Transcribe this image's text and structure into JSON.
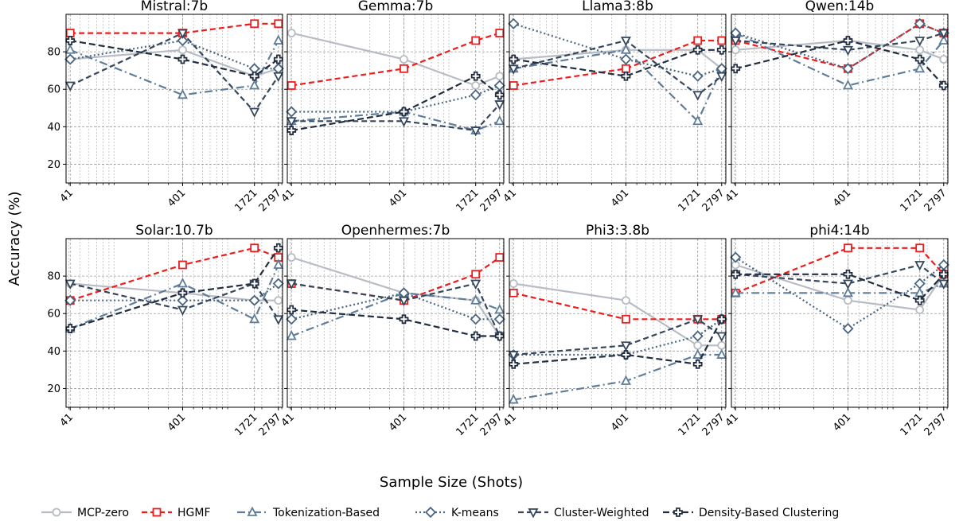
{
  "figure": {
    "xlabel": "Sample Size (Shots)",
    "ylabel": "Accuracy (%)"
  },
  "chart_data": {
    "type": "line",
    "x_scale": "log",
    "x": [
      41,
      401,
      1721,
      2797
    ],
    "x_tick_labels": [
      "41",
      "401",
      "1721",
      "2797"
    ],
    "y_ticks": [
      20,
      40,
      60,
      80
    ],
    "ylim": [
      10,
      100
    ],
    "grid": true,
    "legend_position": "bottom",
    "series_styles": [
      {
        "name": "MCP-zero",
        "color": "#b8bcc4",
        "dash": "",
        "marker": "circle",
        "width": 2.2
      },
      {
        "name": "HGMF",
        "color": "#ee1c1c",
        "dash": "7,4",
        "marker": "square",
        "width": 2.2
      },
      {
        "name": "Tokenization-Based",
        "color": "#5f7d99",
        "dash": "10,4,2,4",
        "marker": "triangle-up",
        "width": 2.2
      },
      {
        "name": "K-means",
        "color": "#4a6580",
        "dash": "2,3",
        "marker": "diamond",
        "width": 2.2
      },
      {
        "name": "Cluster-Weighted",
        "color": "#36475c",
        "dash": "7,4",
        "marker": "triangle-down",
        "width": 2.2
      },
      {
        "name": "Density-Based Clustering",
        "color": "#222e40",
        "dash": "8,4",
        "marker": "plus",
        "width": 2.2
      }
    ],
    "panels": [
      {
        "title": "Mistral:7b",
        "series": [
          {
            "name": "MCP-zero",
            "values": [
              76,
              81,
              67,
              71
            ]
          },
          {
            "name": "HGMF",
            "values": [
              90,
              90,
              95,
              95
            ]
          },
          {
            "name": "Tokenization-Based",
            "values": [
              81,
              57,
              62,
              86
            ]
          },
          {
            "name": "K-means",
            "values": [
              76,
              86,
              71,
              71
            ]
          },
          {
            "name": "Cluster-Weighted",
            "values": [
              62,
              90,
              48,
              67
            ]
          },
          {
            "name": "Density-Based Clustering",
            "values": [
              86,
              76,
              67,
              76
            ]
          }
        ]
      },
      {
        "title": "Gemma:7b",
        "series": [
          {
            "name": "MCP-zero",
            "values": [
              90,
              76,
              62,
              67
            ]
          },
          {
            "name": "HGMF",
            "values": [
              62,
              71,
              86,
              90
            ]
          },
          {
            "name": "Tokenization-Based",
            "values": [
              43,
              48,
              38,
              43
            ]
          },
          {
            "name": "K-means",
            "values": [
              48,
              48,
              57,
              62
            ]
          },
          {
            "name": "Cluster-Weighted",
            "values": [
              43,
              43,
              38,
              52
            ]
          },
          {
            "name": "Density-Based Clustering",
            "values": [
              38,
              48,
              67,
              57
            ]
          }
        ]
      },
      {
        "title": "Llama3:8b",
        "series": [
          {
            "name": "MCP-zero",
            "values": [
              76,
              81,
              81,
              71
            ]
          },
          {
            "name": "HGMF",
            "values": [
              62,
              71,
              86,
              86
            ]
          },
          {
            "name": "Tokenization-Based",
            "values": [
              71,
              81,
              43,
              71
            ]
          },
          {
            "name": "K-means",
            "values": [
              95,
              76,
              67,
              71
            ]
          },
          {
            "name": "Cluster-Weighted",
            "values": [
              71,
              86,
              57,
              67
            ]
          },
          {
            "name": "Density-Based Clustering",
            "values": [
              76,
              67,
              81,
              81
            ]
          }
        ]
      },
      {
        "title": "Qwen:14b",
        "series": [
          {
            "name": "MCP-zero",
            "values": [
              81,
              86,
              81,
              76
            ]
          },
          {
            "name": "HGMF",
            "values": [
              86,
              71,
              95,
              90
            ]
          },
          {
            "name": "Tokenization-Based",
            "values": [
              90,
              62,
              71,
              86
            ]
          },
          {
            "name": "K-means",
            "values": [
              90,
              71,
              95,
              90
            ]
          },
          {
            "name": "Cluster-Weighted",
            "values": [
              86,
              81,
              86,
              90
            ]
          },
          {
            "name": "Density-Based Clustering",
            "values": [
              71,
              86,
              76,
              62
            ]
          }
        ]
      },
      {
        "title": "Solar:10.7b",
        "series": [
          {
            "name": "MCP-zero",
            "values": [
              76,
              71,
              67,
              67
            ]
          },
          {
            "name": "HGMF",
            "values": [
              67,
              86,
              95,
              90
            ]
          },
          {
            "name": "Tokenization-Based",
            "values": [
              52,
              76,
              57,
              86
            ]
          },
          {
            "name": "K-means",
            "values": [
              67,
              67,
              67,
              76
            ]
          },
          {
            "name": "Cluster-Weighted",
            "values": [
              76,
              62,
              76,
              57
            ]
          },
          {
            "name": "Density-Based Clustering",
            "values": [
              52,
              71,
              76,
              95
            ]
          }
        ]
      },
      {
        "title": "Openhermes:7b",
        "series": [
          {
            "name": "MCP-zero",
            "values": [
              90,
              71,
              67,
              48
            ]
          },
          {
            "name": "HGMF",
            "values": [
              76,
              67,
              81,
              90
            ]
          },
          {
            "name": "Tokenization-Based",
            "values": [
              48,
              71,
              67,
              62
            ]
          },
          {
            "name": "K-means",
            "values": [
              57,
              71,
              57,
              57
            ]
          },
          {
            "name": "Cluster-Weighted",
            "values": [
              76,
              67,
              76,
              48
            ]
          },
          {
            "name": "Density-Based Clustering",
            "values": [
              62,
              57,
              48,
              48
            ]
          }
        ]
      },
      {
        "title": "Phi3:3.8b",
        "series": [
          {
            "name": "MCP-zero",
            "values": [
              76,
              67,
              43,
              43
            ]
          },
          {
            "name": "HGMF",
            "values": [
              71,
              57,
              57,
              57
            ]
          },
          {
            "name": "Tokenization-Based",
            "values": [
              14,
              24,
              38,
              38
            ]
          },
          {
            "name": "K-means",
            "values": [
              38,
              38,
              48,
              57
            ]
          },
          {
            "name": "Cluster-Weighted",
            "values": [
              38,
              43,
              57,
              48
            ]
          },
          {
            "name": "Density-Based Clustering",
            "values": [
              33,
              38,
              33,
              57
            ]
          }
        ]
      },
      {
        "title": "phi4:14b",
        "series": [
          {
            "name": "MCP-zero",
            "values": [
              86,
              67,
              62,
              81
            ]
          },
          {
            "name": "HGMF",
            "values": [
              71,
              95,
              95,
              81
            ]
          },
          {
            "name": "Tokenization-Based",
            "values": [
              71,
              71,
              71,
              76
            ]
          },
          {
            "name": "K-means",
            "values": [
              90,
              52,
              76,
              86
            ]
          },
          {
            "name": "Cluster-Weighted",
            "values": [
              81,
              76,
              86,
              76
            ]
          },
          {
            "name": "Density-Based Clustering",
            "values": [
              81,
              81,
              67,
              81
            ]
          }
        ]
      }
    ]
  }
}
